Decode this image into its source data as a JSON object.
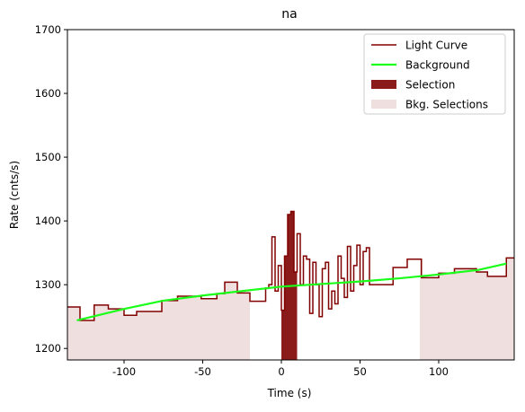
{
  "chart_data": {
    "type": "step",
    "title": "na",
    "x_label": "Time (s)",
    "y_label": "Rate (cnts/s)",
    "xlim": [
      -136,
      148
    ],
    "ylim": [
      1182,
      1700
    ],
    "xticks": [
      -100,
      -50,
      0,
      50,
      100
    ],
    "yticks": [
      1200,
      1300,
      1400,
      1500,
      1600,
      1700
    ],
    "series": [
      {
        "name": "Light Curve",
        "color": "#800000",
        "x": [
          -136,
          -128,
          -119,
          -110,
          -100,
          -92,
          -76,
          -66,
          -51,
          -41,
          -36,
          -28,
          -20,
          -10,
          -8,
          -6,
          -4,
          -2,
          0,
          2,
          4,
          6,
          8,
          10,
          12,
          14,
          16,
          18,
          20,
          22,
          24,
          26,
          28,
          30,
          32,
          34,
          36,
          38,
          40,
          42,
          44,
          46,
          48,
          50,
          52,
          54,
          56,
          71,
          80,
          89,
          100,
          110,
          124,
          131,
          143,
          148
        ],
        "values": [
          1265,
          1244,
          1268,
          1262,
          1252,
          1258,
          1275,
          1282,
          1278,
          1286,
          1304,
          1287,
          1274,
          1295,
          1300,
          1375,
          1290,
          1330,
          1260,
          1345,
          1410,
          1415,
          1320,
          1380,
          1300,
          1345,
          1340,
          1255,
          1335,
          1300,
          1250,
          1325,
          1335,
          1262,
          1290,
          1270,
          1345,
          1310,
          1280,
          1360,
          1290,
          1330,
          1362,
          1300,
          1352,
          1358,
          1300,
          1327,
          1340,
          1311,
          1318,
          1325,
          1320,
          1313,
          1342,
          1342
        ]
      },
      {
        "name": "Background",
        "color": "#19ff19",
        "x": [
          -130,
          -100,
          -75,
          -50,
          -25,
          0,
          25,
          50,
          75,
          100,
          125,
          143
        ],
        "values": [
          1244,
          1262,
          1275,
          1283,
          1290,
          1297,
          1301,
          1305,
          1310,
          1316,
          1323,
          1333
        ]
      }
    ],
    "selection": {
      "name": "Selection",
      "color": "#8b1a1a",
      "range": [
        0,
        10
      ]
    },
    "bkg_selections": {
      "name": "Bkg. Selections",
      "color": "#efdfdf",
      "ranges": [
        [
          -136,
          -20
        ],
        [
          88,
          148
        ]
      ]
    },
    "legend": "upper right"
  }
}
